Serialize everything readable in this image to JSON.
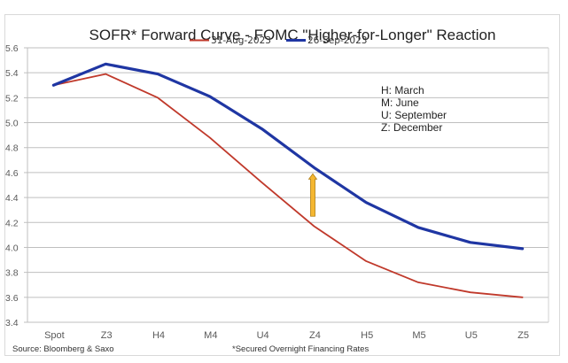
{
  "chart_data": {
    "type": "line",
    "title": "SOFR* Forward Curve - FOMC \"Higher-for-Longer\" Reaction",
    "xlabel": "",
    "ylabel": "",
    "categories": [
      "Spot",
      "Z3",
      "H4",
      "M4",
      "U4",
      "Z4",
      "H5",
      "M5",
      "U5",
      "Z5"
    ],
    "ylim": [
      3.4,
      5.6
    ],
    "yticks": [
      "3.4",
      "3.6",
      "3.8",
      "4.0",
      "4.2",
      "4.4",
      "4.6",
      "4.8",
      "5.0",
      "5.2",
      "5.4",
      "5.6"
    ],
    "grid": true,
    "legend_position": "top-center",
    "series": [
      {
        "name": "31-Aug-2023",
        "color": "#c0392b",
        "values": [
          5.3,
          5.39,
          5.2,
          4.88,
          4.52,
          4.17,
          3.89,
          3.72,
          3.64,
          3.6
        ]
      },
      {
        "name": "26-Sep-2023",
        "color": "#1f36a3",
        "values": [
          5.3,
          5.47,
          5.39,
          5.21,
          4.95,
          4.64,
          4.36,
          4.16,
          4.04,
          3.99
        ]
      }
    ],
    "annotations": {
      "key_lines": [
        "H: March",
        "M: June",
        "U: September",
        "Z: December"
      ],
      "arrow": {
        "category": "Z4",
        "from": 4.25,
        "to": 4.59,
        "color": "#f5b731",
        "direction": "up"
      }
    },
    "source": "Source: Bloomberg & Saxo",
    "footnote": "*Secured Overnight Financing Rates"
  }
}
